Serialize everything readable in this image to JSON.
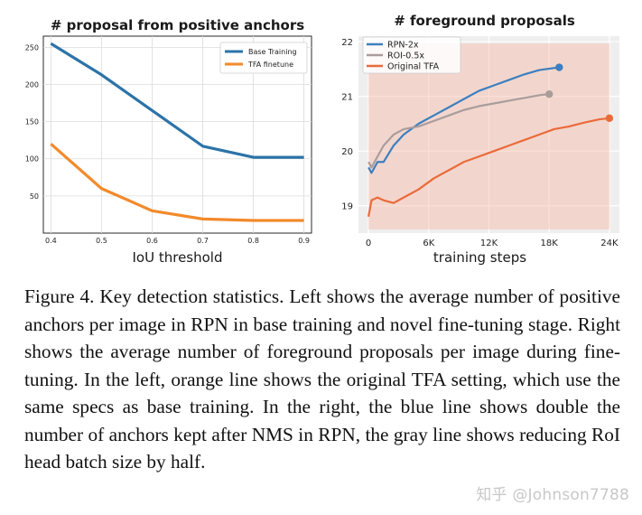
{
  "chart_data": [
    {
      "type": "line",
      "title": "# proposal from positive anchors",
      "xlabel": "IoU threshold",
      "ylabel": "",
      "x": [
        0.4,
        0.5,
        0.6,
        0.7,
        0.8,
        0.9
      ],
      "xticks": [
        "0.4",
        "0.5",
        "0.6",
        "0.7",
        "0.8",
        "0.9"
      ],
      "yticks": [
        50,
        100,
        150,
        200,
        250
      ],
      "ylim": [
        0,
        265
      ],
      "grid": true,
      "legend": "top-right",
      "series": [
        {
          "name": "Base Training",
          "values": [
            255,
            213,
            165,
            117,
            102,
            102
          ],
          "color": "#2c73a8"
        },
        {
          "name": "TFA finetune",
          "values": [
            120,
            60,
            30,
            19,
            17,
            17
          ],
          "color": "#f28a2a"
        }
      ]
    },
    {
      "type": "line",
      "title": "# foreground proposals",
      "xlabel": "training steps",
      "ylabel": "",
      "xticks": [
        "0",
        "6K",
        "12K",
        "18K",
        "24K"
      ],
      "xtick_values": [
        0,
        6000,
        12000,
        18000,
        24000
      ],
      "yticks": [
        19,
        20,
        21,
        22
      ],
      "xlim": [
        -1000,
        25000
      ],
      "ylim": [
        18.5,
        22.1
      ],
      "grid": true,
      "legend": "top-left",
      "series": [
        {
          "name": "RPN-2x",
          "color": "#3d7fc0",
          "x": [
            0,
            300,
            900,
            1500,
            2500,
            3500,
            5000,
            6500,
            8000,
            9500,
            11000,
            12500,
            14000,
            15500,
            17000,
            19000
          ],
          "values": [
            19.7,
            19.6,
            19.8,
            19.8,
            20.1,
            20.3,
            20.5,
            20.65,
            20.8,
            20.95,
            21.1,
            21.2,
            21.3,
            21.4,
            21.48,
            21.53
          ]
        },
        {
          "name": "ROI-0.5x",
          "color": "#a99d9c",
          "x": [
            0,
            300,
            900,
            1500,
            2500,
            3500,
            5000,
            6500,
            8000,
            9500,
            11000,
            12500,
            14000,
            15500,
            17000,
            18000
          ],
          "values": [
            19.8,
            19.7,
            19.9,
            20.1,
            20.3,
            20.4,
            20.45,
            20.55,
            20.65,
            20.75,
            20.82,
            20.87,
            20.92,
            20.97,
            21.02,
            21.04
          ]
        },
        {
          "name": "Original TFA",
          "color": "#eb6a3a",
          "x": [
            0,
            300,
            900,
            1500,
            2500,
            3500,
            5000,
            6500,
            8000,
            9500,
            11000,
            12500,
            14000,
            15500,
            17000,
            18500,
            20000,
            21500,
            23000,
            24000
          ],
          "values": [
            18.8,
            19.1,
            19.15,
            19.1,
            19.05,
            19.15,
            19.3,
            19.5,
            19.65,
            19.8,
            19.9,
            20.0,
            20.1,
            20.2,
            20.3,
            20.4,
            20.45,
            20.52,
            20.58,
            20.6
          ]
        }
      ]
    }
  ],
  "caption": "Figure 4. Key detection statistics. Left shows the average number of positive anchors per image in RPN in base training and novel fine-tuning stage. Right shows the average number of foreground proposals per image during fine-tuning. In the left, orange line shows the original TFA setting, which use the same specs as base training. In the right, the blue line shows double the number of anchors kept after NMS in RPN, the gray line shows reducing RoI head batch size by half.",
  "watermark": "知乎 @Johnson7788"
}
